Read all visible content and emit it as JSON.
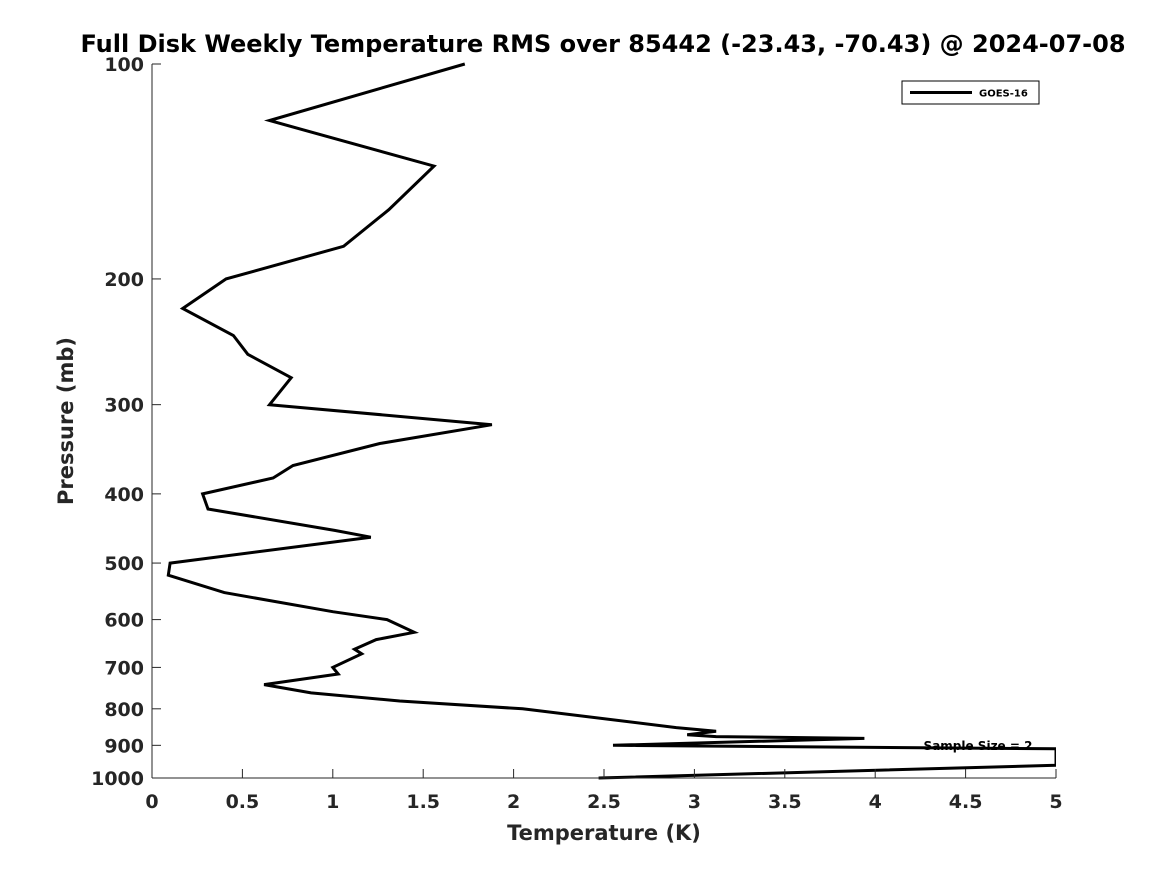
{
  "chart_data": {
    "type": "line",
    "title": "Full Disk Weekly Temperature RMS over 85442 (-23.43, -70.43) @ 2024-07-08",
    "xlabel": "Temperature (K)",
    "ylabel": "Pressure (mb)",
    "xlim": [
      0,
      5
    ],
    "ylim": [
      100,
      1000
    ],
    "y_scale": "log",
    "y_reversed": true,
    "x_ticks": [
      "0",
      "0.5",
      "1",
      "1.5",
      "2",
      "2.5",
      "3",
      "3.5",
      "4",
      "4.5",
      "5"
    ],
    "y_ticks": [
      "100",
      "200",
      "300",
      "400",
      "500",
      "600",
      "700",
      "800",
      "900",
      "1000"
    ],
    "grid": false,
    "legend_position": "top-right",
    "annotation": "Sample Size = 2",
    "series": [
      {
        "name": "GOES-16",
        "color": "#000000",
        "points": [
          [
            1.73,
            100
          ],
          [
            0.65,
            120
          ],
          [
            1.56,
            139
          ],
          [
            1.31,
            160
          ],
          [
            1.06,
            180
          ],
          [
            0.41,
            200
          ],
          [
            0.17,
            220
          ],
          [
            0.45,
            240
          ],
          [
            0.53,
            255
          ],
          [
            0.77,
            275
          ],
          [
            0.65,
            300
          ],
          [
            1.88,
            320
          ],
          [
            1.26,
            340
          ],
          [
            0.78,
            365
          ],
          [
            0.67,
            380
          ],
          [
            0.28,
            400
          ],
          [
            0.31,
            420
          ],
          [
            1.01,
            450
          ],
          [
            1.21,
            460
          ],
          [
            0.1,
            500
          ],
          [
            0.09,
            520
          ],
          [
            0.4,
            550
          ],
          [
            1.0,
            585
          ],
          [
            1.3,
            600
          ],
          [
            1.45,
            625
          ],
          [
            1.24,
            640
          ],
          [
            1.12,
            660
          ],
          [
            1.16,
            670
          ],
          [
            1.0,
            700
          ],
          [
            1.03,
            715
          ],
          [
            0.62,
            740
          ],
          [
            0.88,
            760
          ],
          [
            1.37,
            780
          ],
          [
            2.05,
            800
          ],
          [
            2.9,
            850
          ],
          [
            3.12,
            860
          ],
          [
            2.96,
            870
          ],
          [
            3.12,
            875
          ],
          [
            3.94,
            880
          ],
          [
            2.55,
            900
          ],
          [
            5.0,
            910
          ],
          [
            5.0,
            960
          ],
          [
            2.47,
            1000
          ]
        ]
      }
    ]
  }
}
